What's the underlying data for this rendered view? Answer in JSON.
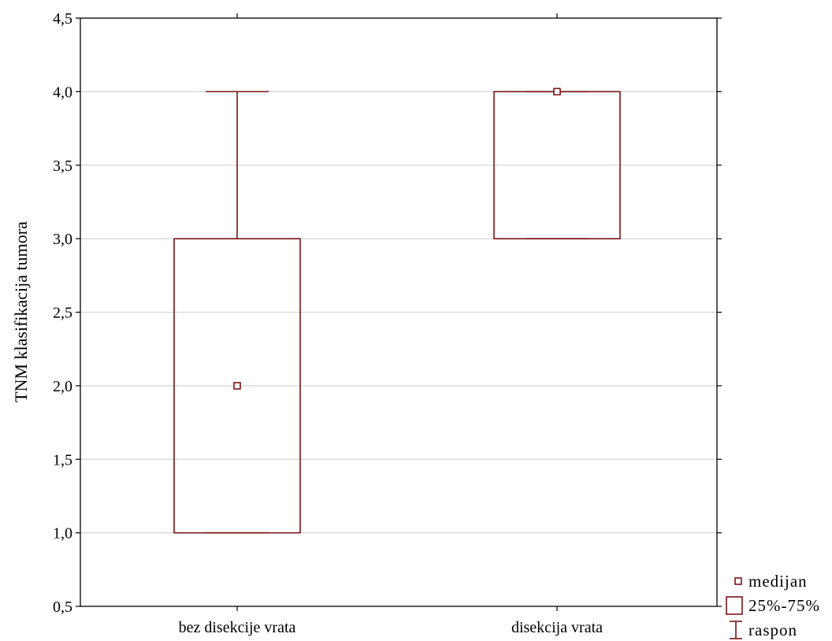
{
  "chart_data": {
    "type": "box",
    "ylabel": "TNM klasifikacija tumora",
    "xlabel": "",
    "ylim": [
      0.5,
      4.5
    ],
    "yticks": [
      "0,5",
      "1,0",
      "1,5",
      "2,0",
      "2,5",
      "3,0",
      "3,5",
      "4,0",
      "4,5"
    ],
    "ytick_values": [
      0.5,
      1.0,
      1.5,
      2.0,
      2.5,
      3.0,
      3.5,
      4.0,
      4.5
    ],
    "grid": true,
    "color": "#7b1416",
    "categories": [
      "bez disekcije vrata",
      "disekcija vrata"
    ],
    "boxes": [
      {
        "category": "bez disekcije vrata",
        "min": 1.0,
        "q1": 1.0,
        "median": 2.0,
        "q3": 3.0,
        "max": 4.0
      },
      {
        "category": "disekcija vrata",
        "min": 3.0,
        "q1": 3.0,
        "median": 4.0,
        "q3": 4.0,
        "max": 4.0
      }
    ],
    "legend": {
      "position": "bottom-right",
      "items": [
        {
          "symbol": "median",
          "label": "medijan"
        },
        {
          "symbol": "box",
          "label": "25%-75%"
        },
        {
          "symbol": "range",
          "label": "raspon"
        }
      ]
    }
  }
}
